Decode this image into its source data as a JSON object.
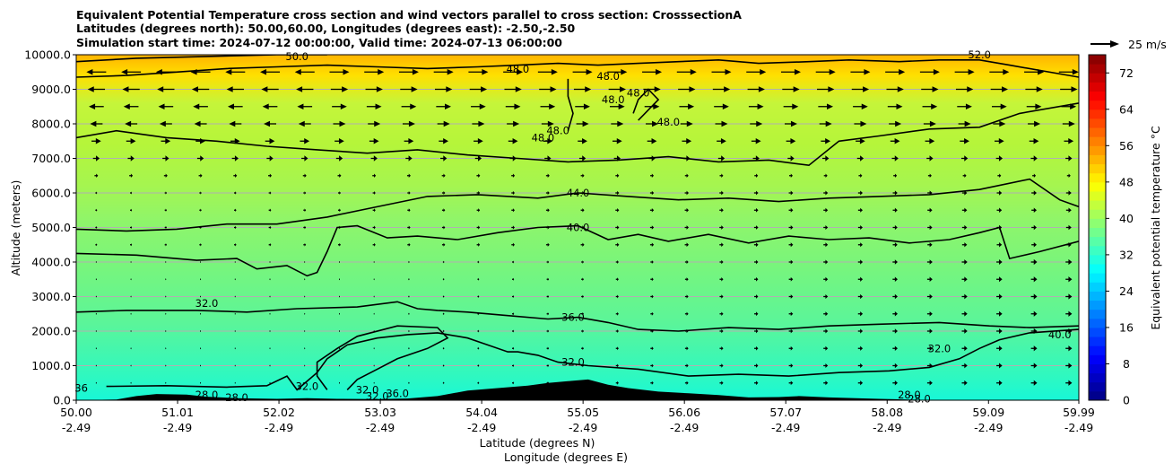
{
  "chart_data": {
    "type": "heatmap",
    "title_lines": [
      "Equivalent Potential Temperature cross section and wind vectors parallel to cross section: CrosssectionA",
      "Latitudes (degrees north): 50.00,60.00, Longitudes (degrees east): -2.50,-2.50",
      "Simulation start time: 2024-07-12 00:00:00, Valid time: 2024-07-13 06:00:00"
    ],
    "ylabel": "Altitude (meters)",
    "xlabel_lines": [
      "Latitude (degrees N)",
      "Longitude (degrees E)"
    ],
    "ylim": [
      0,
      10000
    ],
    "xlim": [
      50.0,
      59.99
    ],
    "y_ticks": [
      "0.0",
      "1000.0",
      "2000.0",
      "3000.0",
      "4000.0",
      "5000.0",
      "6000.0",
      "7000.0",
      "8000.0",
      "9000.0",
      "10000.0"
    ],
    "x_ticks": [
      {
        "lat": "50.00",
        "lon": "-2.49"
      },
      {
        "lat": "51.01",
        "lon": "-2.49"
      },
      {
        "lat": "52.02",
        "lon": "-2.49"
      },
      {
        "lat": "53.03",
        "lon": "-2.49"
      },
      {
        "lat": "54.04",
        "lon": "-2.49"
      },
      {
        "lat": "55.05",
        "lon": "-2.49"
      },
      {
        "lat": "56.06",
        "lon": "-2.49"
      },
      {
        "lat": "57.07",
        "lon": "-2.49"
      },
      {
        "lat": "58.08",
        "lon": "-2.49"
      },
      {
        "lat": "59.09",
        "lon": "-2.49"
      },
      {
        "lat": "59.99",
        "lon": "-2.49"
      }
    ],
    "grid": "horizontal",
    "colorbar": {
      "label": "Equivalent potential temperature °C",
      "min": 0,
      "max": 76,
      "step": 2,
      "ticks": [
        "0",
        "8",
        "16",
        "24",
        "32",
        "40",
        "48",
        "56",
        "64",
        "72"
      ],
      "colormap": "jet"
    },
    "quiver_key": {
      "label": "25 m/s",
      "value": 25
    },
    "contour_labels": [
      {
        "text": "50.0",
        "lat": 52.2,
        "alt": 9950
      },
      {
        "text": "48.0",
        "lat": 54.4,
        "alt": 9580
      },
      {
        "text": "48.0",
        "lat": 55.3,
        "alt": 9380
      },
      {
        "text": "48.0",
        "lat": 55.35,
        "alt": 8700
      },
      {
        "text": "48.0",
        "lat": 55.6,
        "alt": 8900
      },
      {
        "text": "48.0",
        "lat": 55.9,
        "alt": 8050
      },
      {
        "text": "48.0",
        "lat": 54.8,
        "alt": 7800
      },
      {
        "text": "48.0",
        "lat": 54.65,
        "alt": 7600
      },
      {
        "text": "52.0",
        "lat": 59.0,
        "alt": 10000
      },
      {
        "text": "44.0",
        "lat": 55.0,
        "alt": 6000
      },
      {
        "text": "40.0",
        "lat": 55.0,
        "alt": 5000
      },
      {
        "text": "36.0",
        "lat": 54.95,
        "alt": 2400
      },
      {
        "text": "32.0",
        "lat": 51.3,
        "alt": 2800
      },
      {
        "text": "32.0",
        "lat": 54.95,
        "alt": 1100
      },
      {
        "text": "32.0",
        "lat": 58.6,
        "alt": 1500
      },
      {
        "text": "40.0",
        "lat": 59.8,
        "alt": 1900
      },
      {
        "text": "28.0",
        "lat": 51.3,
        "alt": 150
      },
      {
        "text": "28.0",
        "lat": 51.6,
        "alt": 80
      },
      {
        "text": "32.0",
        "lat": 52.3,
        "alt": 400
      },
      {
        "text": "32.0",
        "lat": 52.9,
        "alt": 300
      },
      {
        "text": "32.0",
        "lat": 53.0,
        "alt": 120
      },
      {
        "text": "36.0",
        "lat": 53.2,
        "alt": 200
      },
      {
        "text": "28.0",
        "lat": 58.3,
        "alt": 150
      },
      {
        "text": "28.0",
        "lat": 58.4,
        "alt": 40
      },
      {
        "text": "36",
        "lat": 50.05,
        "alt": 350
      }
    ],
    "contours": [
      {
        "level": 32,
        "points": [
          [
            50.3,
            400
          ],
          [
            50.9,
            420
          ],
          [
            51.5,
            380
          ],
          [
            51.9,
            420
          ],
          [
            52.1,
            700
          ],
          [
            52.2,
            300
          ],
          [
            52.4,
            800
          ],
          [
            52.5,
            1200
          ],
          [
            52.7,
            1600
          ],
          [
            53.0,
            1800
          ],
          [
            53.3,
            1900
          ],
          [
            53.6,
            1950
          ],
          [
            53.9,
            1800
          ],
          [
            54.1,
            1600
          ],
          [
            54.3,
            1400
          ],
          [
            54.4,
            1400
          ],
          [
            54.6,
            1300
          ],
          [
            54.8,
            1100
          ],
          [
            55.1,
            1000
          ],
          [
            55.6,
            900
          ],
          [
            56.1,
            700
          ],
          [
            56.6,
            750
          ],
          [
            57.1,
            700
          ],
          [
            57.6,
            800
          ],
          [
            58.1,
            850
          ],
          [
            58.5,
            950
          ],
          [
            58.8,
            1200
          ],
          [
            59.0,
            1500
          ],
          [
            59.2,
            1750
          ],
          [
            59.5,
            1950
          ],
          [
            59.99,
            2050
          ]
        ]
      },
      {
        "level": 32,
        "points": [
          [
            52.5,
            300
          ],
          [
            52.4,
            700
          ],
          [
            52.4,
            1100
          ],
          [
            52.6,
            1500
          ],
          [
            52.8,
            1850
          ],
          [
            53.2,
            2150
          ],
          [
            53.6,
            2100
          ],
          [
            53.7,
            1800
          ],
          [
            53.5,
            1500
          ],
          [
            53.2,
            1200
          ],
          [
            53.0,
            900
          ],
          [
            52.8,
            600
          ],
          [
            52.7,
            300
          ]
        ]
      },
      {
        "level": 36,
        "points": [
          [
            50.0,
            2550
          ],
          [
            50.5,
            2600
          ],
          [
            51.2,
            2600
          ],
          [
            51.7,
            2550
          ],
          [
            52.2,
            2650
          ],
          [
            52.8,
            2700
          ],
          [
            53.2,
            2850
          ],
          [
            53.4,
            2650
          ],
          [
            53.6,
            2600
          ],
          [
            53.9,
            2550
          ],
          [
            54.3,
            2450
          ],
          [
            54.7,
            2350
          ],
          [
            55.0,
            2400
          ],
          [
            55.3,
            2250
          ],
          [
            55.6,
            2050
          ],
          [
            56.0,
            2000
          ],
          [
            56.5,
            2100
          ],
          [
            57.0,
            2050
          ],
          [
            57.5,
            2150
          ],
          [
            58.0,
            2200
          ],
          [
            58.6,
            2250
          ],
          [
            59.1,
            2150
          ],
          [
            59.5,
            2100
          ],
          [
            59.99,
            2150
          ]
        ]
      },
      {
        "level": 40,
        "points": [
          [
            50.0,
            4250
          ],
          [
            50.6,
            4200
          ],
          [
            51.2,
            4050
          ],
          [
            51.6,
            4100
          ],
          [
            51.8,
            3800
          ],
          [
            52.1,
            3900
          ],
          [
            52.3,
            3600
          ],
          [
            52.4,
            3700
          ],
          [
            52.5,
            4300
          ],
          [
            52.6,
            5000
          ],
          [
            52.8,
            5050
          ],
          [
            53.1,
            4700
          ],
          [
            53.4,
            4750
          ],
          [
            53.8,
            4650
          ],
          [
            54.2,
            4850
          ],
          [
            54.6,
            5000
          ],
          [
            55.0,
            5050
          ],
          [
            55.3,
            4650
          ],
          [
            55.6,
            4800
          ],
          [
            55.9,
            4600
          ],
          [
            56.3,
            4800
          ],
          [
            56.7,
            4550
          ],
          [
            57.1,
            4750
          ],
          [
            57.5,
            4650
          ],
          [
            57.9,
            4700
          ],
          [
            58.3,
            4550
          ],
          [
            58.7,
            4650
          ],
          [
            59.0,
            4850
          ],
          [
            59.2,
            5000
          ],
          [
            59.3,
            4100
          ],
          [
            59.6,
            4300
          ],
          [
            59.99,
            4600
          ]
        ]
      },
      {
        "level": 44,
        "points": [
          [
            50.0,
            4950
          ],
          [
            50.5,
            4900
          ],
          [
            51.0,
            4950
          ],
          [
            51.5,
            5100
          ],
          [
            52.0,
            5100
          ],
          [
            52.5,
            5300
          ],
          [
            53.0,
            5600
          ],
          [
            53.5,
            5900
          ],
          [
            54.0,
            5950
          ],
          [
            54.6,
            5850
          ],
          [
            55.0,
            6000
          ],
          [
            55.5,
            5900
          ],
          [
            56.0,
            5800
          ],
          [
            56.5,
            5850
          ],
          [
            57.0,
            5750
          ],
          [
            57.5,
            5850
          ],
          [
            58.0,
            5900
          ],
          [
            58.5,
            5950
          ],
          [
            59.0,
            6100
          ],
          [
            59.5,
            6400
          ],
          [
            59.8,
            5800
          ],
          [
            59.99,
            5600
          ]
        ]
      },
      {
        "level": 44,
        "points": [
          [
            50.0,
            7600
          ],
          [
            50.4,
            7800
          ],
          [
            50.9,
            7600
          ],
          [
            51.4,
            7500
          ],
          [
            51.9,
            7350
          ],
          [
            52.4,
            7250
          ],
          [
            52.9,
            7150
          ],
          [
            53.4,
            7250
          ],
          [
            53.9,
            7100
          ],
          [
            54.4,
            7000
          ],
          [
            54.9,
            6900
          ],
          [
            55.4,
            6950
          ],
          [
            55.9,
            7050
          ],
          [
            56.4,
            6900
          ],
          [
            56.9,
            6950
          ],
          [
            57.3,
            6800
          ],
          [
            57.6,
            7500
          ],
          [
            58.0,
            7650
          ],
          [
            58.5,
            7850
          ],
          [
            59.0,
            7900
          ],
          [
            59.4,
            8300
          ],
          [
            59.99,
            8600
          ]
        ]
      },
      {
        "level": 48,
        "points": [
          [
            50.0,
            9350
          ],
          [
            50.5,
            9400
          ],
          [
            51.0,
            9500
          ],
          [
            51.5,
            9600
          ],
          [
            52.0,
            9650
          ],
          [
            52.5,
            9700
          ],
          [
            53.0,
            9650
          ],
          [
            53.5,
            9600
          ],
          [
            54.0,
            9650
          ],
          [
            54.4,
            9700
          ],
          [
            54.8,
            9750
          ],
          [
            55.2,
            9700
          ],
          [
            55.6,
            9750
          ],
          [
            56.0,
            9800
          ],
          [
            56.4,
            9850
          ],
          [
            56.8,
            9750
          ],
          [
            57.3,
            9800
          ],
          [
            57.7,
            9850
          ],
          [
            58.2,
            9800
          ],
          [
            58.6,
            9850
          ],
          [
            59.0,
            9850
          ],
          [
            59.3,
            9700
          ],
          [
            59.99,
            9350
          ]
        ]
      },
      {
        "level": 48,
        "points": [
          [
            54.9,
            9300
          ],
          [
            54.9,
            8800
          ],
          [
            54.95,
            8300
          ],
          [
            54.9,
            7800
          ]
        ]
      },
      {
        "level": 48,
        "points": [
          [
            55.6,
            8100
          ],
          [
            55.7,
            8400
          ],
          [
            55.8,
            8700
          ],
          [
            55.7,
            9000
          ],
          [
            55.6,
            8700
          ],
          [
            55.55,
            8300
          ]
        ]
      },
      {
        "level": 50,
        "points": [
          [
            50.0,
            9800
          ],
          [
            50.6,
            9900
          ],
          [
            51.3,
            9950
          ],
          [
            52.0,
            10000
          ],
          [
            52.5,
            10000
          ]
        ]
      }
    ],
    "terrain": [
      [
        50.0,
        0
      ],
      [
        50.4,
        20
      ],
      [
        50.6,
        120
      ],
      [
        50.8,
        180
      ],
      [
        51.1,
        160
      ],
      [
        51.3,
        100
      ],
      [
        51.6,
        60
      ],
      [
        52.0,
        40
      ],
      [
        52.3,
        60
      ],
      [
        52.6,
        40
      ],
      [
        53.0,
        30
      ],
      [
        53.3,
        50
      ],
      [
        53.6,
        120
      ],
      [
        53.9,
        280
      ],
      [
        54.2,
        350
      ],
      [
        54.5,
        420
      ],
      [
        54.7,
        500
      ],
      [
        54.9,
        550
      ],
      [
        55.1,
        600
      ],
      [
        55.3,
        450
      ],
      [
        55.5,
        350
      ],
      [
        55.8,
        250
      ],
      [
        56.1,
        200
      ],
      [
        56.4,
        150
      ],
      [
        56.7,
        80
      ],
      [
        57.0,
        90
      ],
      [
        57.2,
        120
      ],
      [
        57.5,
        80
      ],
      [
        58.0,
        40
      ],
      [
        58.3,
        20
      ],
      [
        58.5,
        0
      ]
    ]
  }
}
